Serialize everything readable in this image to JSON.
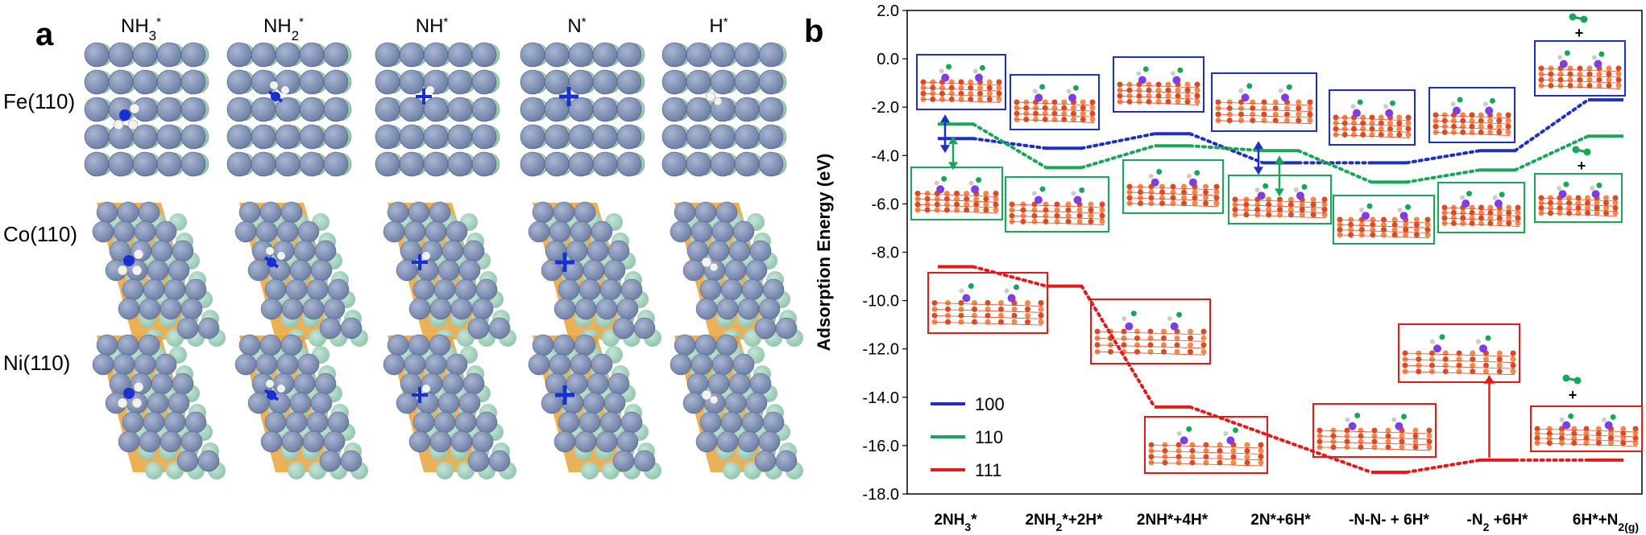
{
  "panel_a": {
    "letter": "a",
    "columns": [
      {
        "base": "NH",
        "sub": "3",
        "sup": "*"
      },
      {
        "base": "NH",
        "sub": "2",
        "sup": "*"
      },
      {
        "base": "NH",
        "sub": "",
        "sup": "*"
      },
      {
        "base": "N",
        "sub": "",
        "sup": "*"
      },
      {
        "base": "H",
        "sub": "",
        "sup": "*"
      }
    ],
    "rows": [
      "Fe(110)",
      "Co(110)",
      "Ni(110)"
    ],
    "colors": {
      "atom": "#6e7fa6",
      "atom_light": "#aab6d2",
      "sublayer": "#8fc4ad",
      "gap": "#e8a33c",
      "adsorbate_n": "#1a2fd1",
      "adsorbate_h": "#f2f2f2"
    }
  },
  "panel_b": {
    "letter": "b",
    "legend": [
      {
        "label": "100",
        "color": "#1f2fbf"
      },
      {
        "label": "110",
        "color": "#1aa65a"
      },
      {
        "label": "111",
        "color": "#e31a1c"
      }
    ],
    "plus_sign": "+"
  },
  "chart_data": {
    "type": "line",
    "title": "",
    "xlabel": "",
    "ylabel": "Adsorption Energy (eV)",
    "ylim": [
      -18.0,
      2.0
    ],
    "yticks": [
      "2.0",
      "0.0",
      "-2.0",
      "-4.0",
      "-6.0",
      "-8.0",
      "-10.0",
      "-12.0",
      "-14.0",
      "-16.0",
      "-18.0"
    ],
    "categories": [
      "2NH3*",
      "2NH2*+2H*",
      "2NH*+4H*",
      "2N*+6H*",
      "-N-N- + 6H*",
      "-N2+6H*",
      "6H*+N2(g)"
    ],
    "category_labels": [
      {
        "base": "2NH",
        "sub": "3",
        "rest": "*"
      },
      {
        "base": "2NH",
        "sub": "2",
        "rest": "*+2H*"
      },
      {
        "base": "2NH*+4H*",
        "sub": "",
        "rest": ""
      },
      {
        "base": "2N*+6H*",
        "sub": "",
        "rest": ""
      },
      {
        "base": "-N-N- + 6H*",
        "sub": "",
        "rest": ""
      },
      {
        "base": "-N",
        "sub": "2",
        "rest": " +6H*"
      },
      {
        "base": "6H*+N",
        "sub": "2(g)",
        "rest": ""
      }
    ],
    "series": [
      {
        "name": "100",
        "color": "#1f2fbf",
        "values": [
          -3.3,
          -3.7,
          -3.1,
          -4.3,
          -4.3,
          -3.8,
          -1.7
        ]
      },
      {
        "name": "110",
        "color": "#1aa65a",
        "values": [
          -2.7,
          -4.5,
          -3.6,
          -3.8,
          -5.1,
          -4.6,
          -3.2
        ]
      },
      {
        "name": "111",
        "color": "#e31a1c",
        "values": [
          -8.6,
          -9.4,
          -14.4,
          null,
          -17.1,
          -16.6,
          -16.6
        ]
      }
    ],
    "grid": false,
    "legend_position": "bottom-left"
  }
}
